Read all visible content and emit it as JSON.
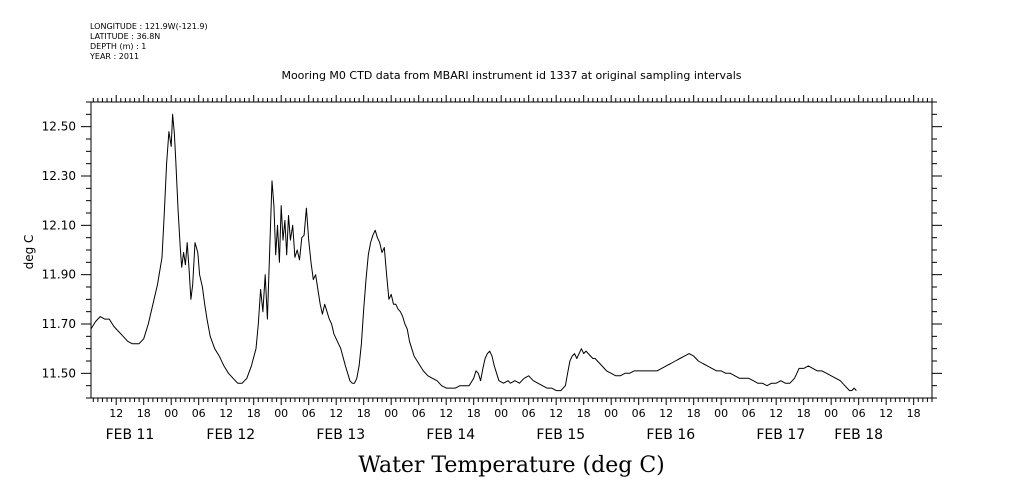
{
  "header": {
    "longitude": "LONGITUDE : 121.9W(-121.9)",
    "latitude": "LATITUDE : 36.8N",
    "depth": "DEPTH (m) : 1",
    "year": "YEAR : 2011"
  },
  "chart_data": {
    "type": "line",
    "title": "Mooring M0 CTD data from MBARI instrument id 1337 at original sampling intervals",
    "xlabel": "Water Temperature (deg C)",
    "ylabel": "deg C",
    "ylim": [
      11.4,
      12.6
    ],
    "yticks": [
      11.5,
      11.7,
      11.9,
      12.1,
      12.3,
      12.5
    ],
    "ytick_labels": [
      "11.50",
      "11.70",
      "11.90",
      "12.10",
      "12.30",
      "12.50"
    ],
    "x_unit": "hours since FEB 11 00:00",
    "xlim": [
      -17.5,
      166
    ],
    "xticks": [
      -12,
      -6,
      0,
      6,
      12,
      18,
      24,
      30,
      36,
      42,
      48,
      54,
      60,
      66,
      72,
      78,
      84,
      90,
      96,
      102,
      108,
      114,
      120,
      126,
      132,
      138,
      144,
      150,
      156,
      162
    ],
    "xtick_labels": [
      "12",
      "18",
      "00",
      "06",
      "12",
      "18",
      "00",
      "06",
      "12",
      "18",
      "00",
      "06",
      "12",
      "18",
      "00",
      "06",
      "12",
      "18",
      "00",
      "06",
      "12",
      "18",
      "00",
      "06",
      "12",
      "18",
      "00",
      "06",
      "12",
      "18"
    ],
    "date_labels": [
      {
        "label": "FEB 11",
        "x": -9
      },
      {
        "label": "FEB 12",
        "x": 13
      },
      {
        "label": "FEB 13",
        "x": 37
      },
      {
        "label": "FEB 14",
        "x": 61
      },
      {
        "label": "FEB 15",
        "x": 85
      },
      {
        "label": "FEB 16",
        "x": 109
      },
      {
        "label": "FEB 17",
        "x": 133
      },
      {
        "label": "FEB 18",
        "x": 150
      }
    ],
    "grid": false,
    "series": [
      {
        "name": "",
        "points": [
          [
            -17.5,
            11.68
          ],
          [
            -16.5,
            11.71
          ],
          [
            -15.5,
            11.73
          ],
          [
            -14.5,
            11.72
          ],
          [
            -13.5,
            11.72
          ],
          [
            -12.5,
            11.69
          ],
          [
            -11.5,
            11.67
          ],
          [
            -10.5,
            11.65
          ],
          [
            -9.5,
            11.63
          ],
          [
            -8.5,
            11.62
          ],
          [
            -7,
            11.62
          ],
          [
            -6,
            11.64
          ],
          [
            -5,
            11.7
          ],
          [
            -4,
            11.78
          ],
          [
            -3,
            11.86
          ],
          [
            -2,
            11.97
          ],
          [
            -1.5,
            12.15
          ],
          [
            -1,
            12.35
          ],
          [
            -0.5,
            12.48
          ],
          [
            0,
            12.42
          ],
          [
            0.3,
            12.55
          ],
          [
            0.7,
            12.47
          ],
          [
            1,
            12.36
          ],
          [
            1.5,
            12.16
          ],
          [
            2,
            12.0
          ],
          [
            2.3,
            11.93
          ],
          [
            2.7,
            11.99
          ],
          [
            3.1,
            11.94
          ],
          [
            3.5,
            12.03
          ],
          [
            3.9,
            11.92
          ],
          [
            4.3,
            11.8
          ],
          [
            4.7,
            11.86
          ],
          [
            5.2,
            12.03
          ],
          [
            5.8,
            11.99
          ],
          [
            6.2,
            11.9
          ],
          [
            6.8,
            11.85
          ],
          [
            7.3,
            11.78
          ],
          [
            7.8,
            11.72
          ],
          [
            8.5,
            11.65
          ],
          [
            9.5,
            11.6
          ],
          [
            10.5,
            11.57
          ],
          [
            11.5,
            11.53
          ],
          [
            12.5,
            11.5
          ],
          [
            13.5,
            11.48
          ],
          [
            14.5,
            11.46
          ],
          [
            15.5,
            11.46
          ],
          [
            16.5,
            11.48
          ],
          [
            17.5,
            11.53
          ],
          [
            18.5,
            11.6
          ],
          [
            19,
            11.7
          ],
          [
            19.5,
            11.84
          ],
          [
            20,
            11.75
          ],
          [
            20.5,
            11.9
          ],
          [
            21,
            11.72
          ],
          [
            21.5,
            12.0
          ],
          [
            22,
            12.28
          ],
          [
            22.4,
            12.18
          ],
          [
            22.8,
            11.98
          ],
          [
            23.2,
            12.1
          ],
          [
            23.6,
            11.95
          ],
          [
            24,
            12.18
          ],
          [
            24.4,
            12.04
          ],
          [
            24.8,
            12.12
          ],
          [
            25.2,
            11.98
          ],
          [
            25.6,
            12.14
          ],
          [
            26,
            12.04
          ],
          [
            26.5,
            12.1
          ],
          [
            27,
            11.97
          ],
          [
            27.5,
            12.0
          ],
          [
            28,
            11.96
          ],
          [
            28.5,
            12.05
          ],
          [
            29,
            12.06
          ],
          [
            29.5,
            12.17
          ],
          [
            30,
            12.04
          ],
          [
            30.5,
            11.95
          ],
          [
            31,
            11.88
          ],
          [
            31.5,
            11.9
          ],
          [
            32,
            11.84
          ],
          [
            32.5,
            11.78
          ],
          [
            33,
            11.74
          ],
          [
            33.5,
            11.78
          ],
          [
            34,
            11.75
          ],
          [
            34.5,
            11.72
          ],
          [
            35,
            11.7
          ],
          [
            35.5,
            11.66
          ],
          [
            36,
            11.64
          ],
          [
            37,
            11.6
          ],
          [
            38,
            11.53
          ],
          [
            38.5,
            11.5
          ],
          [
            39,
            11.47
          ],
          [
            39.5,
            11.46
          ],
          [
            40,
            11.46
          ],
          [
            40.5,
            11.48
          ],
          [
            41,
            11.53
          ],
          [
            41.5,
            11.62
          ],
          [
            42,
            11.76
          ],
          [
            42.5,
            11.88
          ],
          [
            43,
            11.98
          ],
          [
            43.5,
            12.03
          ],
          [
            44,
            12.06
          ],
          [
            44.5,
            12.08
          ],
          [
            45,
            12.05
          ],
          [
            45.5,
            12.03
          ],
          [
            46,
            11.99
          ],
          [
            46.5,
            12.01
          ],
          [
            47,
            11.9
          ],
          [
            47.5,
            11.8
          ],
          [
            48,
            11.82
          ],
          [
            48.5,
            11.78
          ],
          [
            49,
            11.78
          ],
          [
            49.5,
            11.76
          ],
          [
            50,
            11.75
          ],
          [
            50.5,
            11.73
          ],
          [
            51,
            11.7
          ],
          [
            51.5,
            11.68
          ],
          [
            52,
            11.63
          ],
          [
            52.5,
            11.6
          ],
          [
            53,
            11.57
          ],
          [
            54,
            11.54
          ],
          [
            55,
            11.51
          ],
          [
            56,
            11.49
          ],
          [
            57,
            11.48
          ],
          [
            58,
            11.47
          ],
          [
            59,
            11.45
          ],
          [
            60,
            11.44
          ],
          [
            61,
            11.44
          ],
          [
            62,
            11.44
          ],
          [
            63,
            11.45
          ],
          [
            64,
            11.45
          ],
          [
            65,
            11.45
          ],
          [
            66,
            11.48
          ],
          [
            66.5,
            11.51
          ],
          [
            67,
            11.5
          ],
          [
            67.5,
            11.47
          ],
          [
            68,
            11.52
          ],
          [
            68.5,
            11.56
          ],
          [
            69,
            11.58
          ],
          [
            69.5,
            11.59
          ],
          [
            70,
            11.57
          ],
          [
            70.5,
            11.53
          ],
          [
            71,
            11.5
          ],
          [
            71.5,
            11.47
          ],
          [
            72.5,
            11.46
          ],
          [
            73.5,
            11.47
          ],
          [
            74,
            11.46
          ],
          [
            75,
            11.47
          ],
          [
            76,
            11.46
          ],
          [
            77,
            11.48
          ],
          [
            78,
            11.49
          ],
          [
            78.5,
            11.48
          ],
          [
            79,
            11.47
          ],
          [
            80,
            11.46
          ],
          [
            81,
            11.45
          ],
          [
            82,
            11.44
          ],
          [
            83,
            11.44
          ],
          [
            84,
            11.43
          ],
          [
            85,
            11.43
          ],
          [
            86,
            11.45
          ],
          [
            86.5,
            11.5
          ],
          [
            87,
            11.55
          ],
          [
            87.5,
            11.57
          ],
          [
            88,
            11.58
          ],
          [
            88.5,
            11.56
          ],
          [
            89,
            11.58
          ],
          [
            89.5,
            11.6
          ],
          [
            90,
            11.58
          ],
          [
            90.5,
            11.59
          ],
          [
            91,
            11.58
          ],
          [
            91.5,
            11.57
          ],
          [
            92,
            11.56
          ],
          [
            92.5,
            11.56
          ],
          [
            93,
            11.55
          ],
          [
            94,
            11.53
          ],
          [
            95,
            11.51
          ],
          [
            96,
            11.5
          ],
          [
            97,
            11.49
          ],
          [
            98,
            11.49
          ],
          [
            99,
            11.5
          ],
          [
            100,
            11.5
          ],
          [
            101,
            11.51
          ],
          [
            102,
            11.51
          ],
          [
            103,
            11.51
          ],
          [
            104,
            11.51
          ],
          [
            105,
            11.51
          ],
          [
            106,
            11.51
          ],
          [
            107,
            11.52
          ],
          [
            108,
            11.53
          ],
          [
            109,
            11.54
          ],
          [
            110,
            11.55
          ],
          [
            111,
            11.56
          ],
          [
            112,
            11.57
          ],
          [
            113,
            11.58
          ],
          [
            114,
            11.57
          ],
          [
            115,
            11.55
          ],
          [
            116,
            11.54
          ],
          [
            117,
            11.53
          ],
          [
            118,
            11.52
          ],
          [
            119,
            11.51
          ],
          [
            120,
            11.51
          ],
          [
            121,
            11.5
          ],
          [
            122,
            11.5
          ],
          [
            123,
            11.49
          ],
          [
            124,
            11.48
          ],
          [
            125,
            11.48
          ],
          [
            126,
            11.48
          ],
          [
            127,
            11.47
          ],
          [
            128,
            11.46
          ],
          [
            129,
            11.46
          ],
          [
            130,
            11.45
          ],
          [
            131,
            11.46
          ],
          [
            132,
            11.46
          ],
          [
            133,
            11.47
          ],
          [
            134,
            11.46
          ],
          [
            135,
            11.46
          ],
          [
            136,
            11.48
          ],
          [
            137,
            11.52
          ],
          [
            138,
            11.52
          ],
          [
            139,
            11.53
          ],
          [
            140,
            11.52
          ],
          [
            141,
            11.51
          ],
          [
            142,
            11.51
          ],
          [
            143,
            11.5
          ],
          [
            144,
            11.49
          ],
          [
            145,
            11.48
          ],
          [
            146,
            11.47
          ],
          [
            146.5,
            11.46
          ],
          [
            147,
            11.45
          ],
          [
            148,
            11.43
          ],
          [
            148.5,
            11.43
          ],
          [
            149,
            11.44
          ],
          [
            149.5,
            11.43
          ]
        ]
      }
    ]
  }
}
